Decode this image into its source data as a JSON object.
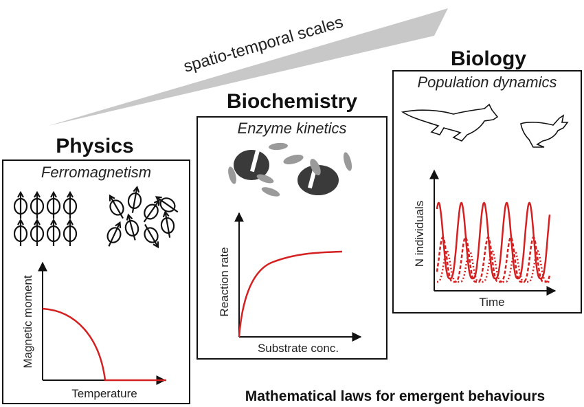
{
  "scale_label": "spatio-temporal scales",
  "panels": [
    {
      "title": "Physics",
      "subtitle": "Ferromagnetism",
      "xlabel": "Temperature",
      "ylabel": "Magnetic moment"
    },
    {
      "title": "Biochemistry",
      "subtitle": "Enzyme kinetics",
      "xlabel": "Substrate conc.",
      "ylabel": "Reaction rate"
    },
    {
      "title": "Biology",
      "subtitle": "Population dynamics",
      "xlabel": "Time",
      "ylabel": "N individuals"
    }
  ],
  "footer": "Mathematical laws for emergent behaviours",
  "colors": {
    "curve": "#d42020",
    "arrow": "#c8c8c8",
    "enzyme_dark": "#3a3a3a",
    "substrate": "#9a9a9a"
  }
}
